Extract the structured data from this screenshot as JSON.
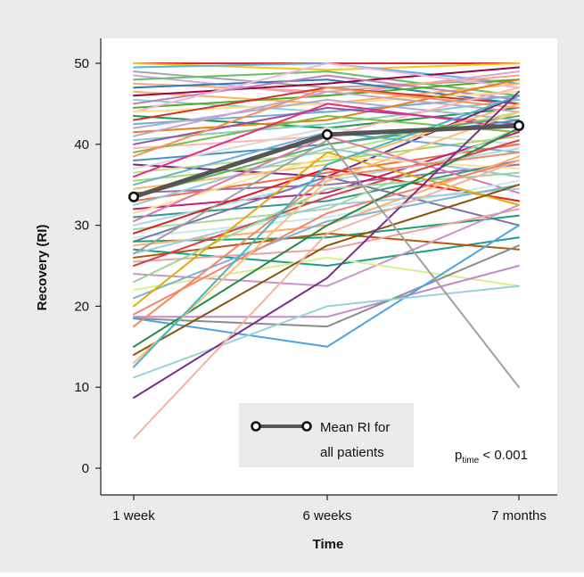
{
  "chart_data": {
    "type": "line",
    "x": [
      "1 week",
      "6 weeks",
      "7 months"
    ],
    "xlabel": "Time",
    "ylabel": "Recovery (RI)",
    "ylim": [
      0,
      50
    ],
    "yticks": [
      0,
      10,
      20,
      30,
      40,
      50
    ],
    "grid": false,
    "legend": {
      "label": "Mean RI for all patients",
      "label_lines": [
        "Mean RI for",
        "all patients"
      ],
      "placement": "bottom-center"
    },
    "annotation": {
      "base": "p",
      "subscript": "time",
      "rest": " < 0.001",
      "placement": "bottom-right"
    },
    "background": "#ebebeb",
    "mean_series": {
      "name": "Mean RI for all patients",
      "values": [
        33.5,
        41.2,
        42.3
      ],
      "color": "#555555"
    },
    "series": [
      {
        "values": [
          50,
          50,
          50
        ],
        "color": "#e6262e"
      },
      {
        "values": [
          50,
          49.2,
          50
        ],
        "color": "#f5c518"
      },
      {
        "values": [
          49.5,
          50,
          47.5
        ],
        "color": "#56b4e9"
      },
      {
        "values": [
          49,
          47,
          48
        ],
        "color": "#a6a6a6"
      },
      {
        "values": [
          48.5,
          46,
          49
        ],
        "color": "#d4a8d8"
      },
      {
        "values": [
          48,
          49,
          46
        ],
        "color": "#66bd63"
      },
      {
        "values": [
          47.5,
          46.5,
          48.5
        ],
        "color": "#f4a582"
      },
      {
        "values": [
          47,
          48,
          45
        ],
        "color": "#2c7bb6"
      },
      {
        "values": [
          46.5,
          45,
          47.5
        ],
        "color": "#fdae61"
      },
      {
        "values": [
          46,
          47.5,
          49.5
        ],
        "color": "#9e0142"
      },
      {
        "values": [
          45.5,
          44,
          46
        ],
        "color": "#8dd3c7"
      },
      {
        "values": [
          45,
          48.5,
          45.5
        ],
        "color": "#bc80bd"
      },
      {
        "values": [
          44.5,
          46,
          48
        ],
        "color": "#4dac26"
      },
      {
        "values": [
          44,
          50,
          47
        ],
        "color": "#f1b6da"
      },
      {
        "values": [
          44,
          45,
          46.5
        ],
        "color": "#fee08b"
      },
      {
        "values": [
          43.5,
          42,
          44.5
        ],
        "color": "#1a9850"
      },
      {
        "values": [
          43,
          47,
          45
        ],
        "color": "#d73027"
      },
      {
        "values": [
          42.5,
          44,
          46
        ],
        "color": "#74add1"
      },
      {
        "values": [
          42,
          45.5,
          43
        ],
        "color": "#b2abd2"
      },
      {
        "values": [
          41.5,
          43,
          48
        ],
        "color": "#e08214"
      },
      {
        "values": [
          41,
          46.5,
          44
        ],
        "color": "#c2a5cf"
      },
      {
        "values": [
          40.5,
          42.5,
          45.5
        ],
        "color": "#80cdc1"
      },
      {
        "values": [
          40,
          44.5,
          42.5
        ],
        "color": "#984ea3"
      },
      {
        "values": [
          39.5,
          41,
          47
        ],
        "color": "#ffb3b3"
      },
      {
        "values": [
          39,
          43.5,
          41.5
        ],
        "color": "#7fbc41"
      },
      {
        "values": [
          38.5,
          47,
          44.5
        ],
        "color": "#fc8d59"
      },
      {
        "values": [
          38,
          40,
          43
        ],
        "color": "#4393c3"
      },
      {
        "values": [
          37.5,
          36,
          46
        ],
        "color": "#762a83"
      },
      {
        "values": [
          37,
          42,
          40
        ],
        "color": "#d9d9d9"
      },
      {
        "values": [
          36.5,
          39,
          44
        ],
        "color": "#b8e186"
      },
      {
        "values": [
          36,
          45,
          42
        ],
        "color": "#e7298a"
      },
      {
        "values": [
          35.5,
          38,
          41
        ],
        "color": "#a6d96a"
      },
      {
        "values": [
          35,
          41.5,
          39
        ],
        "color": "#6baed6"
      },
      {
        "values": [
          34.5,
          37.5,
          45
        ],
        "color": "#fdb863"
      },
      {
        "values": [
          34,
          35,
          37.5
        ],
        "color": "#9970ab"
      },
      {
        "values": [
          33.5,
          40,
          43.5
        ],
        "color": "#5aae61"
      },
      {
        "values": [
          33,
          36.5,
          40
        ],
        "color": "#f46d43"
      },
      {
        "values": [
          32.5,
          39.5,
          36
        ],
        "color": "#92c5de"
      },
      {
        "values": [
          32,
          34,
          41.5
        ],
        "color": "#c51b7d"
      },
      {
        "values": [
          31.5,
          38.5,
          37
        ],
        "color": "#fee090"
      },
      {
        "values": [
          31,
          33,
          38
        ],
        "color": "#35978f"
      },
      {
        "values": [
          30.5,
          41,
          34
        ],
        "color": "#de77ae"
      },
      {
        "values": [
          30,
          35.5,
          39.5
        ],
        "color": "#abd9e9"
      },
      {
        "values": [
          29.5,
          32,
          42
        ],
        "color": "#a6dba0"
      },
      {
        "values": [
          29,
          37,
          33
        ],
        "color": "#e41a1c"
      },
      {
        "values": [
          28.5,
          31,
          35.5
        ],
        "color": "#c7eae5"
      },
      {
        "values": [
          28,
          36,
          30
        ],
        "color": "#8073ac"
      },
      {
        "values": [
          28,
          28.5,
          31.2
        ],
        "color": "#1b9e77"
      },
      {
        "values": [
          27.5,
          30,
          38.5
        ],
        "color": "#fdae6b"
      },
      {
        "values": [
          27,
          25,
          28.5
        ],
        "color": "#1a9f8a"
      },
      {
        "values": [
          26.5,
          32.5,
          34.5
        ],
        "color": "#9ecae1"
      },
      {
        "values": [
          26,
          29,
          27
        ],
        "color": "#b35806"
      },
      {
        "values": [
          25.5,
          27,
          32
        ],
        "color": "#f0a0a0"
      },
      {
        "values": [
          25,
          33.5,
          40.5
        ],
        "color": "#d53e4f"
      },
      {
        "values": [
          24,
          22.5,
          32.5
        ],
        "color": "#c994c7"
      },
      {
        "values": [
          23,
          34.5,
          36.5
        ],
        "color": "#99d594"
      },
      {
        "values": [
          22,
          26,
          22.5
        ],
        "color": "#d9ef8b"
      },
      {
        "values": [
          21,
          30.5,
          35
        ],
        "color": "#80b1d3"
      },
      {
        "values": [
          20,
          39,
          32.5
        ],
        "color": "#e6ab02"
      },
      {
        "values": [
          19,
          31.5,
          38
        ],
        "color": "#fb8072"
      },
      {
        "values": [
          18.7,
          18.7,
          25
        ],
        "color": "#c587d1"
      },
      {
        "values": [
          18.5,
          17.5,
          27.5
        ],
        "color": "#8c8c8c"
      },
      {
        "values": [
          18.5,
          15,
          30
        ],
        "color": "#4ba3e0"
      },
      {
        "values": [
          17.5,
          36,
          39
        ],
        "color": "#ef8a62"
      },
      {
        "values": [
          15,
          30,
          42
        ],
        "color": "#238b45"
      },
      {
        "values": [
          14,
          27.5,
          35
        ],
        "color": "#8c510a"
      },
      {
        "values": [
          13,
          35.5,
          44
        ],
        "color": "#fdbf6f"
      },
      {
        "values": [
          12.5,
          37.5,
          46
        ],
        "color": "#41b6c4"
      },
      {
        "values": [
          11.2,
          20,
          22.5
        ],
        "color": "#96d3d8"
      },
      {
        "values": [
          8.7,
          23.5,
          46.5
        ],
        "color": "#7b2d8e"
      },
      {
        "values": [
          3.7,
          29,
          38
        ],
        "color": "#f2b49c"
      },
      {
        "values": [
          26.5,
          40.5,
          10
        ],
        "color": "#a0a0a0"
      }
    ]
  }
}
